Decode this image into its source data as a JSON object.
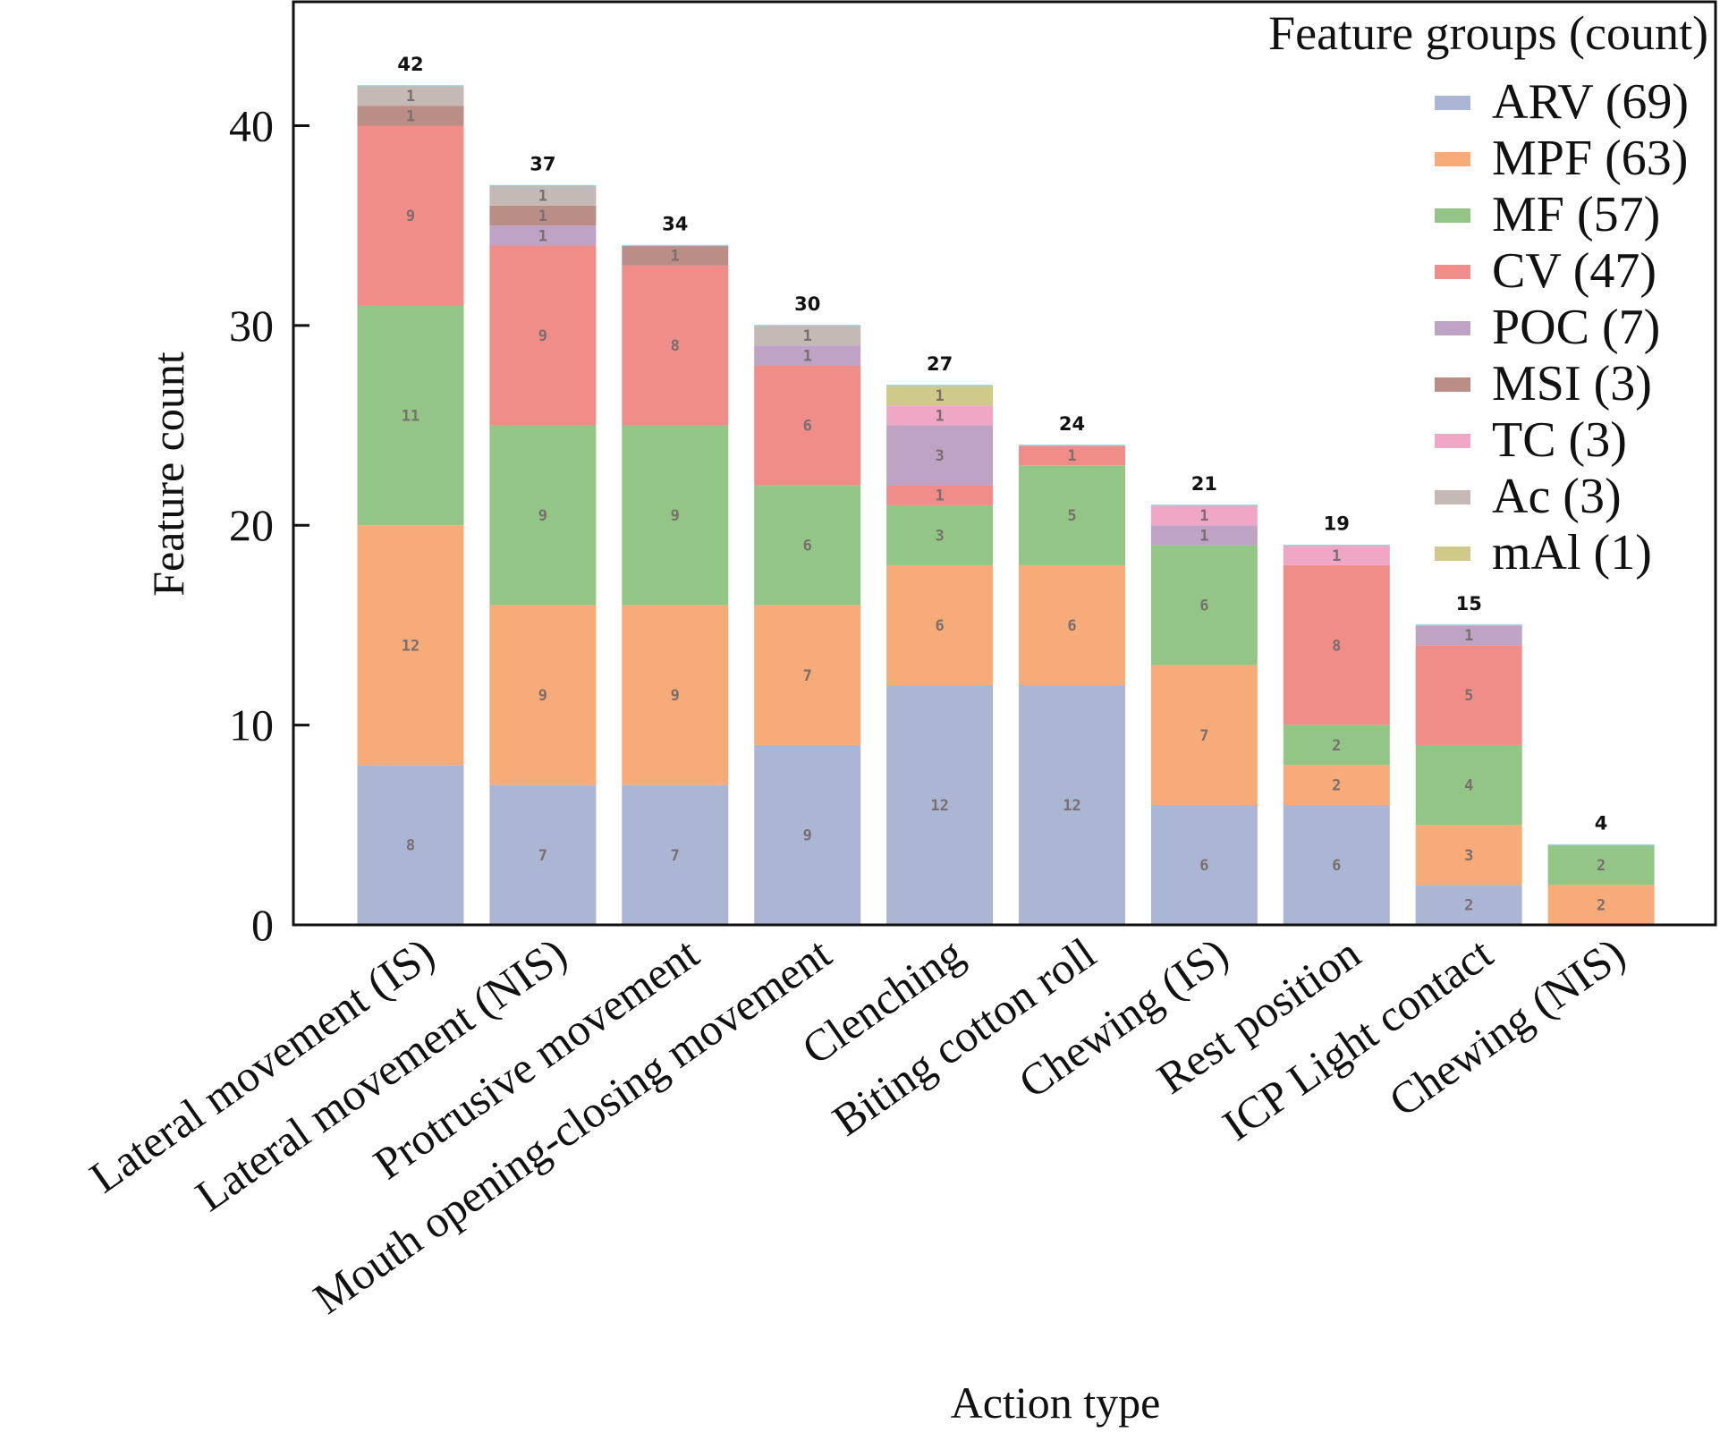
{
  "chart_data": {
    "type": "bar",
    "stacked": true,
    "title": "",
    "xlabel": "Action type",
    "ylabel": "Feature count",
    "ylim": [
      0,
      46.2
    ],
    "yticks": [
      0,
      10,
      20,
      30,
      40
    ],
    "grid": false,
    "legend": {
      "title": "Feature groups (count)",
      "placement": "top-right",
      "entries": [
        "ARV (69)",
        "MPF (63)",
        "MF (57)",
        "CV (47)",
        "POC (7)",
        "MSI (3)",
        "TC (3)",
        "Ac (3)",
        "mAl (1)"
      ]
    },
    "categories": [
      "Lateral movement (IS)",
      "Lateral movement (NIS)",
      "Protrusive movement",
      "Mouth opening-closing movement",
      "Clenching",
      "Biting cotton roll",
      "Chewing (IS)",
      "Rest position",
      "ICP Light contact",
      "Chewing (NIS)"
    ],
    "totals": [
      42,
      37,
      34,
      30,
      27,
      24,
      21,
      19,
      15,
      4
    ],
    "series": [
      {
        "name": "ARV",
        "color": "#aab6d3",
        "values": [
          8,
          7,
          7,
          9,
          12,
          12,
          6,
          6,
          2,
          0
        ]
      },
      {
        "name": "MPF",
        "color": "#f6ab78",
        "values": [
          12,
          9,
          9,
          7,
          6,
          6,
          7,
          2,
          3,
          2
        ]
      },
      {
        "name": "MF",
        "color": "#93c686",
        "values": [
          11,
          9,
          9,
          6,
          3,
          5,
          6,
          2,
          4,
          2
        ]
      },
      {
        "name": "CV",
        "color": "#f08d89",
        "values": [
          9,
          9,
          8,
          6,
          1,
          1,
          0,
          8,
          5,
          0
        ]
      },
      {
        "name": "POC",
        "color": "#bea3c5",
        "values": [
          0,
          1,
          0,
          1,
          3,
          0,
          1,
          0,
          1,
          0
        ]
      },
      {
        "name": "MSI",
        "color": "#bb8d87",
        "values": [
          1,
          1,
          1,
          0,
          0,
          0,
          0,
          0,
          0,
          0
        ]
      },
      {
        "name": "TC",
        "color": "#efa7c5",
        "values": [
          0,
          0,
          0,
          0,
          1,
          0,
          1,
          1,
          0,
          0
        ]
      },
      {
        "name": "Ac",
        "color": "#c4b9b5",
        "values": [
          1,
          1,
          0,
          1,
          0,
          0,
          0,
          0,
          0,
          0
        ]
      },
      {
        "name": "mAl",
        "color": "#cfca89",
        "values": [
          0,
          0,
          0,
          0,
          1,
          0,
          0,
          0,
          0,
          0
        ]
      }
    ]
  }
}
